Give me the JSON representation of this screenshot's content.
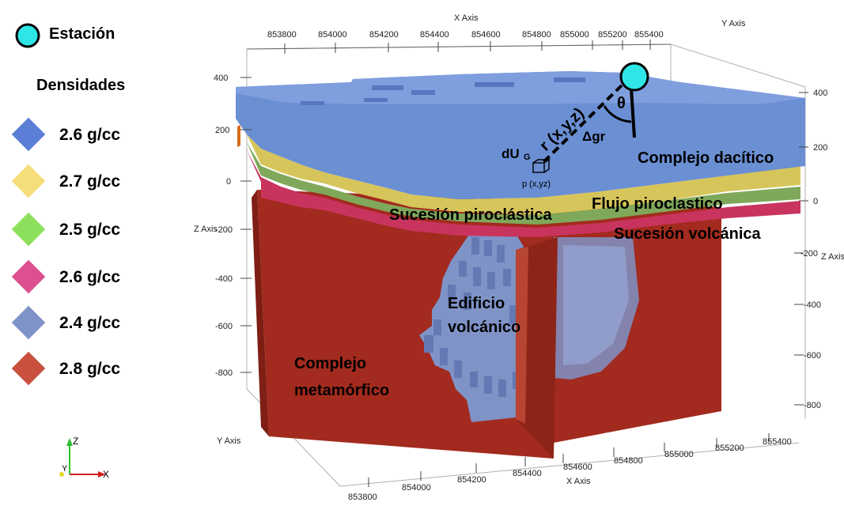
{
  "legend": {
    "station_label": "Estación",
    "title": "Densidades",
    "items": [
      {
        "label": "2.6 g/cc",
        "color": "#5b7fd6"
      },
      {
        "label": "2.7 g/cc",
        "color": "#f5de7a"
      },
      {
        "label": "2.5 g/cc",
        "color": "#8de05c"
      },
      {
        "label": "2.6 g/cc",
        "color": "#dd4f8f"
      },
      {
        "label": "2.4 g/cc",
        "color": "#7f93c7"
      },
      {
        "label": "2.8 g/cc",
        "color": "#c9503f"
      }
    ]
  },
  "axes": {
    "x_title_top": "X Axis",
    "x_title_bottom": "X Axis",
    "y_title_right": "Y Axis",
    "y_title_left": "Y Axis",
    "z_title_left": "Z Axis",
    "z_title_right": "Z Axis",
    "x_ticks_top": [
      "853800",
      "854000",
      "854200",
      "854400",
      "854600",
      "854800",
      "855000",
      "855200",
      "855400"
    ],
    "x_ticks_bottom": [
      "853800",
      "854000",
      "854200",
      "854400",
      "854600",
      "854800",
      "855000",
      "855200",
      "855400"
    ],
    "z_ticks_left": [
      "400",
      "200",
      "0",
      "-200",
      "-400",
      "-600",
      "-800"
    ],
    "z_ticks_right": [
      "400",
      "200",
      "0",
      "-200",
      "-400",
      "-600",
      "-800"
    ]
  },
  "labels": {
    "complejo_dacitico": "Complejo dacítico",
    "flujo_piroclastico": "Flujo piroclastico",
    "sucesion_piroclastica": "Sucesión piroclástica",
    "sucesion_volcanica": "Sucesión volcánica",
    "edificio_line1": "Edificio",
    "edificio_line2": "volcánico",
    "complejo_met_line1": "Complejo",
    "complejo_met_line2": "metamórfico",
    "r_label": "r (x,y,z)",
    "theta": "θ",
    "delta_gr": "Δgr",
    "dU_main": "dU",
    "dU_sub": "G",
    "p_label": "p (x,yz)"
  },
  "orientation": {
    "z": "Z",
    "y": "Y",
    "x": "X"
  },
  "colors": {
    "dacitic": "#6b8fd3",
    "pyroclastic_flow": "#d6c55a",
    "green_layer": "#7fa85a",
    "volcanic_succession": "#c8345e",
    "volcanic_edifice": "#7f93c7",
    "metamorphic": "#a32a1e",
    "station": "#2ee6e6"
  }
}
